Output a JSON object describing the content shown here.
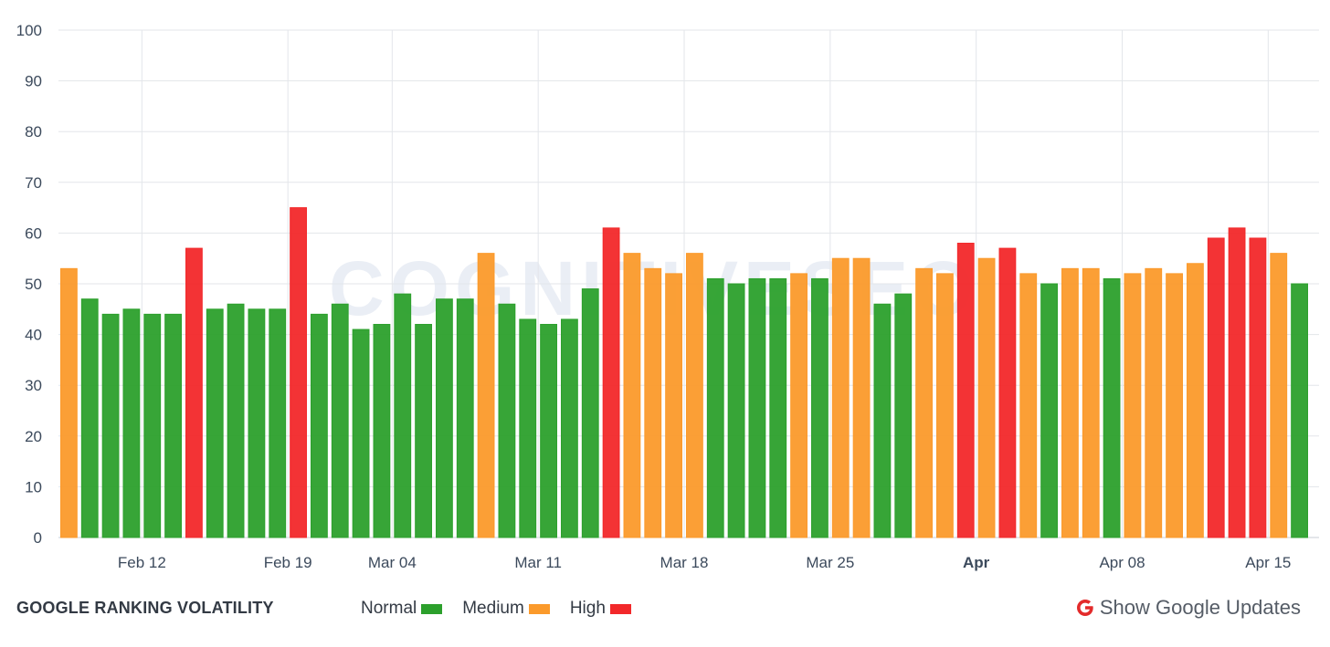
{
  "chart_data": {
    "type": "bar",
    "title": "",
    "watermark": "COGNITIVESEO",
    "ylim": [
      0,
      100
    ],
    "yticks": [
      0,
      10,
      20,
      30,
      40,
      50,
      60,
      70,
      80,
      90,
      100
    ],
    "grid": true,
    "x_tick_labels": [
      {
        "label": "Feb 12",
        "after_bar": 4,
        "bold": false
      },
      {
        "label": "Feb 19",
        "after_bar": 11,
        "bold": false
      },
      {
        "label": "Mar 04",
        "after_bar": 16,
        "bold": false
      },
      {
        "label": "Mar 11",
        "after_bar": 23,
        "bold": false
      },
      {
        "label": "Mar 18",
        "after_bar": 30,
        "bold": false
      },
      {
        "label": "Mar 25",
        "after_bar": 37,
        "bold": false
      },
      {
        "label": "Apr",
        "after_bar": 44,
        "bold": true
      },
      {
        "label": "Apr 08",
        "after_bar": 51,
        "bold": false
      },
      {
        "label": "Apr 15",
        "after_bar": 58,
        "bold": false
      }
    ],
    "values": [
      53,
      47,
      44,
      45,
      44,
      44,
      57,
      45,
      46,
      45,
      45,
      65,
      44,
      46,
      41,
      42,
      48,
      42,
      47,
      47,
      56,
      46,
      43,
      42,
      43,
      49,
      61,
      56,
      53,
      52,
      56,
      51,
      50,
      51,
      51,
      52,
      51,
      55,
      55,
      46,
      48,
      53,
      52,
      58,
      55,
      57,
      52,
      50,
      53,
      53,
      51,
      52,
      53,
      52,
      54,
      59,
      61,
      59,
      56,
      50
    ],
    "levels": [
      "medium",
      "normal",
      "normal",
      "normal",
      "normal",
      "normal",
      "high",
      "normal",
      "normal",
      "normal",
      "normal",
      "high",
      "normal",
      "normal",
      "normal",
      "normal",
      "normal",
      "normal",
      "normal",
      "normal",
      "medium",
      "normal",
      "normal",
      "normal",
      "normal",
      "normal",
      "high",
      "medium",
      "medium",
      "medium",
      "medium",
      "normal",
      "normal",
      "normal",
      "normal",
      "medium",
      "normal",
      "medium",
      "medium",
      "normal",
      "normal",
      "medium",
      "medium",
      "high",
      "medium",
      "high",
      "medium",
      "normal",
      "medium",
      "medium",
      "normal",
      "medium",
      "medium",
      "medium",
      "medium",
      "high",
      "high",
      "high",
      "medium",
      "normal"
    ],
    "colors": {
      "normal": "#2ca02c",
      "medium": "#fb9a2b",
      "high": "#f2282a"
    },
    "legend": [
      {
        "key": "normal",
        "label": "Normal"
      },
      {
        "key": "medium",
        "label": "Medium"
      },
      {
        "key": "high",
        "label": "High"
      }
    ],
    "legend_position": "bottom"
  },
  "footer": {
    "title": "GOOGLE RANKING VOLATILITY",
    "updates_label": "Show Google Updates",
    "updates_icon": "google-g-icon"
  }
}
